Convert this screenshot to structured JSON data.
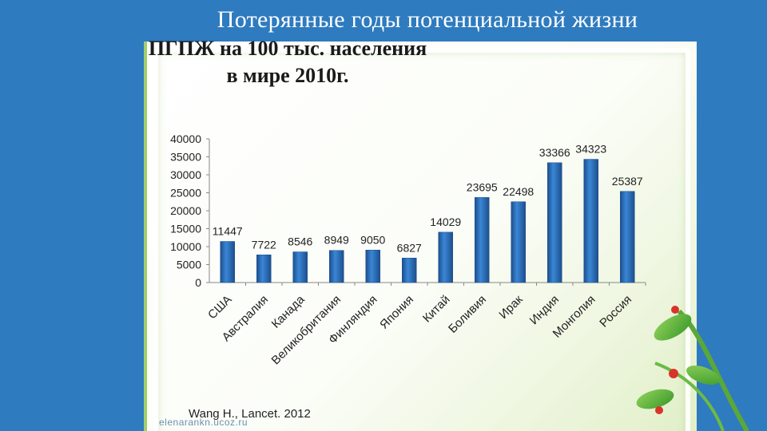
{
  "slide": {
    "title": "Потерянные годы потенциальной жизни",
    "source": "Wang H., Lancet. 2012",
    "watermark": "elenarankn.ucoz.ru"
  },
  "colors": {
    "background": "#2e7bbf",
    "bar": "#2f74c0",
    "bar_dark": "#1c4f8c"
  },
  "chart_data": {
    "type": "bar",
    "title": "ПГПЖ на 100 тыс. населения в мире 2010г.",
    "title_lines": [
      "ПГПЖ на 100 тыс. населения",
      "в мире 2010г."
    ],
    "categories": [
      "США",
      "Австралия",
      "Канада",
      "Великобритания",
      "Финляндия",
      "Япония",
      "Китай",
      "Боливия",
      "Ирак",
      "Индия",
      "Монголия",
      "Россия"
    ],
    "values": [
      11447,
      7722,
      8546,
      8949,
      9050,
      6827,
      14029,
      23695,
      22498,
      33366,
      34323,
      25387
    ],
    "ylim": [
      0,
      40000
    ],
    "yticks": [
      0,
      5000,
      10000,
      15000,
      20000,
      25000,
      30000,
      35000,
      40000
    ],
    "xlabel": "",
    "ylabel": "",
    "grid": false,
    "data_labels": true
  }
}
